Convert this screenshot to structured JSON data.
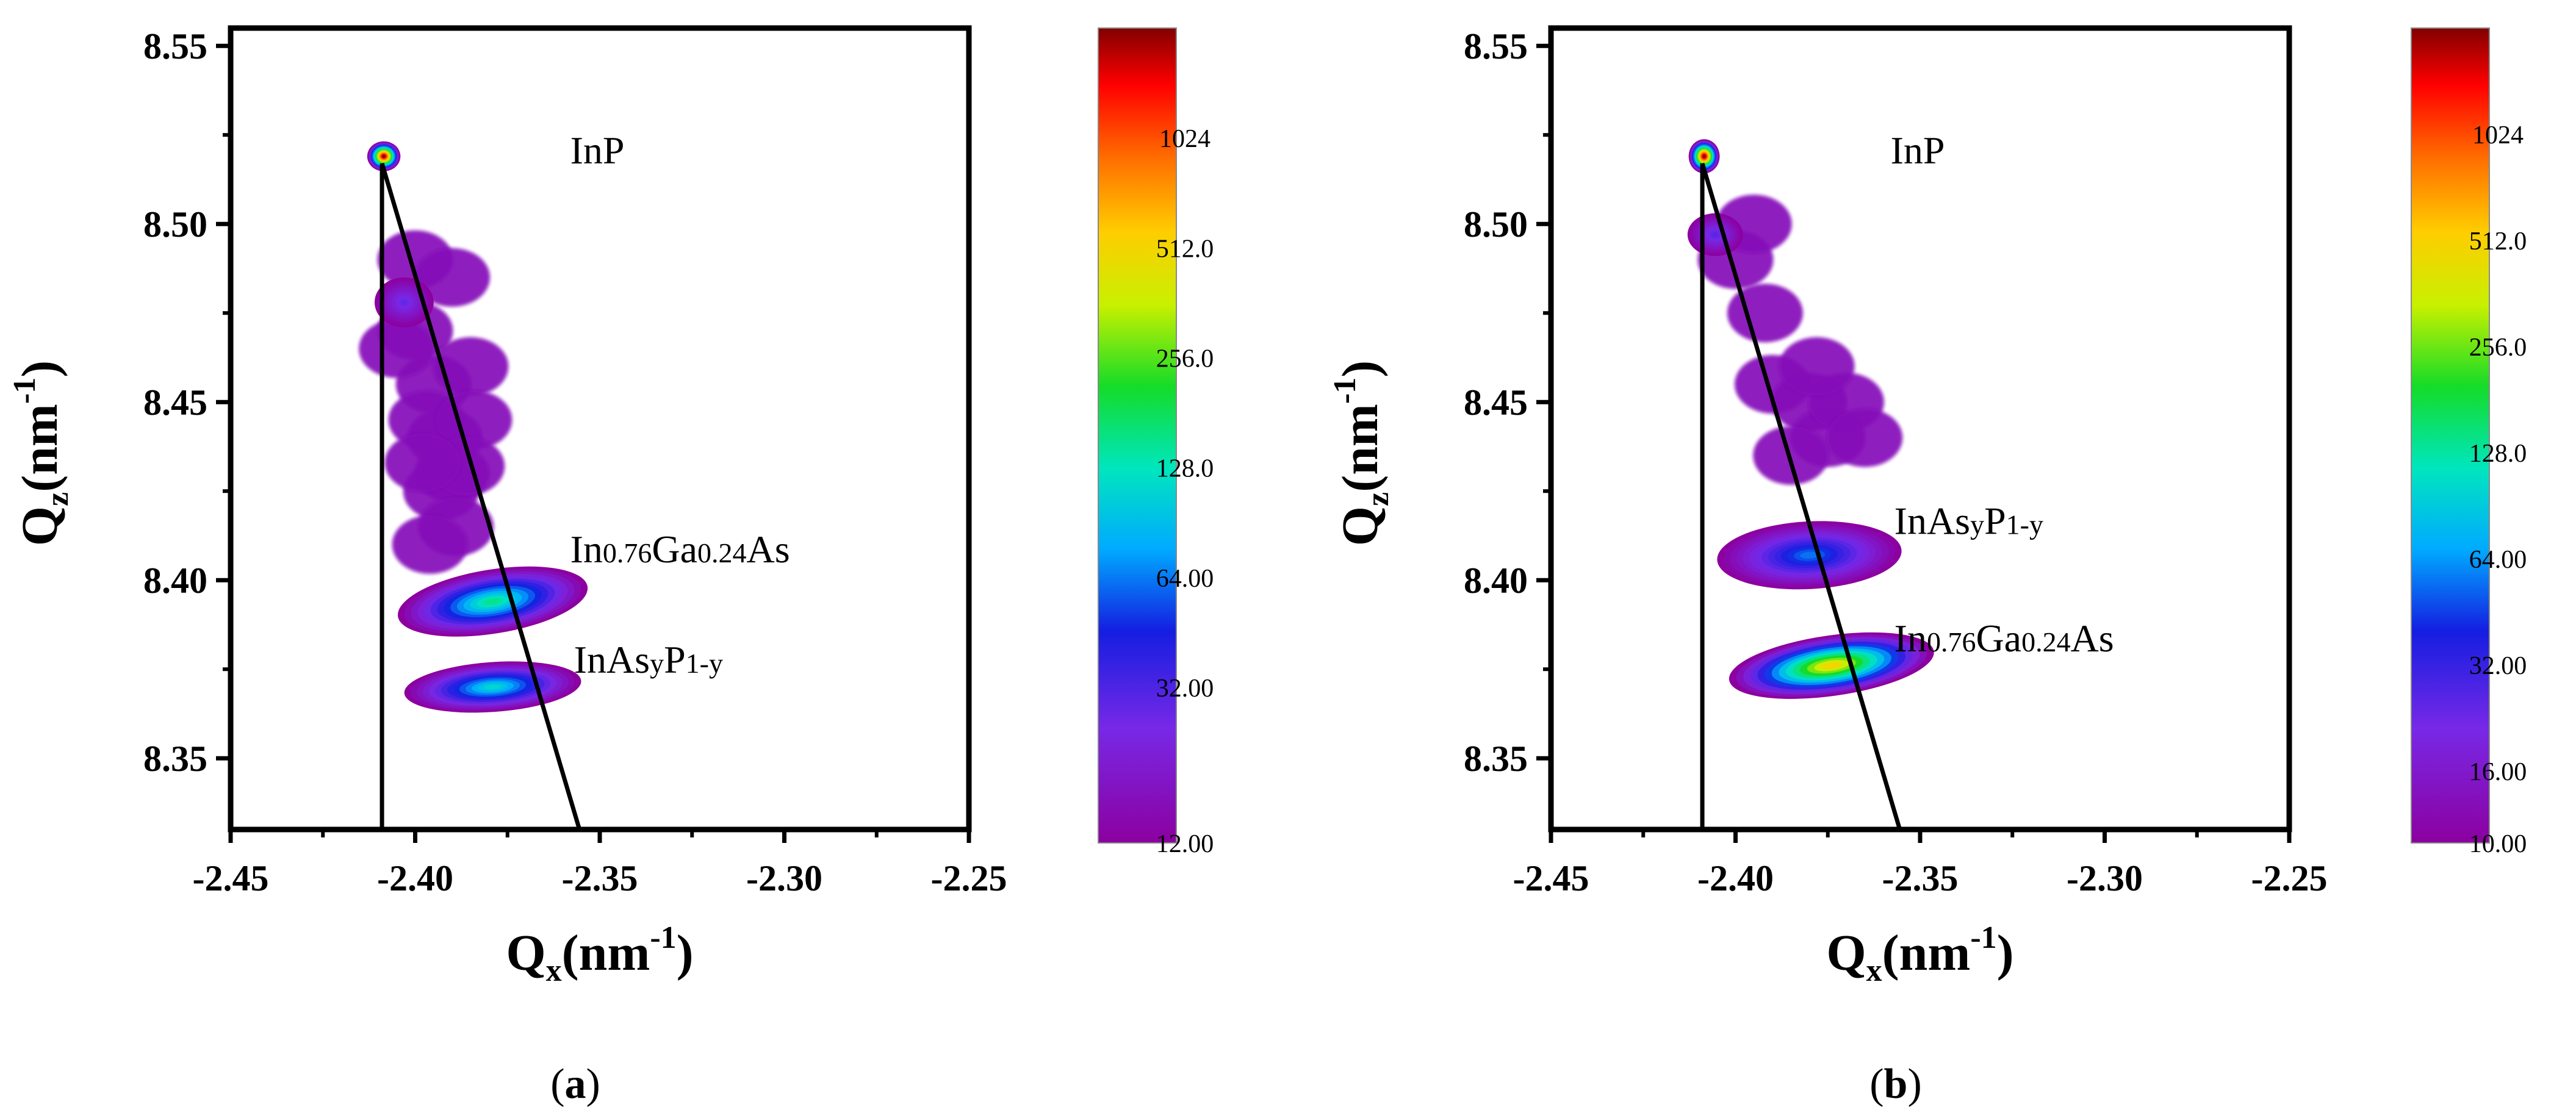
{
  "chart_data": [
    {
      "type": "heatmap",
      "panel_label": "(a)",
      "panel_letter": "a",
      "xlabel": {
        "main": "Q",
        "sub": "x",
        "rest": "(nm",
        "sup": "-1",
        "close": ")"
      },
      "ylabel": {
        "main": "Q",
        "sub": "z",
        "rest": "(nm",
        "sup": "-1",
        "close": ")"
      },
      "xlim": [
        -2.45,
        -2.25
      ],
      "ylim": [
        8.33,
        8.555
      ],
      "x_ticks": [
        "-2.45",
        "-2.40",
        "-2.35",
        "-2.30",
        "-2.25"
      ],
      "y_ticks": [
        "8.35",
        "8.40",
        "8.45",
        "8.50",
        "8.55"
      ],
      "colorbar": {
        "scale": "log",
        "min": 12.0,
        "max": 2048.0,
        "labels": [
          "12.00",
          "32.00",
          "64.00",
          "128.0",
          "256.0",
          "512.0",
          "1024"
        ]
      },
      "annotations": [
        {
          "id": "inp",
          "parts": [
            [
              "InP",
              false
            ]
          ],
          "x": -2.358,
          "y": 8.517
        },
        {
          "id": "ingaas",
          "parts": [
            [
              "In",
              false
            ],
            [
              "0.76",
              true
            ],
            [
              "Ga",
              false
            ],
            [
              "0.24",
              true
            ],
            [
              "As",
              false
            ]
          ],
          "x": -2.358,
          "y": 8.405
        },
        {
          "id": "inasp",
          "parts": [
            [
              "InAs",
              false
            ],
            [
              "y",
              true
            ],
            [
              "P",
              false
            ],
            [
              "1-y",
              true
            ]
          ],
          "x": -2.357,
          "y": 8.374
        }
      ],
      "lines": [
        {
          "name": "relaxation-line",
          "from": [
            -2.409,
            8.517
          ],
          "to": [
            -2.3555,
            8.33
          ]
        },
        {
          "name": "vertical-line",
          "from": [
            -2.409,
            8.517
          ],
          "to": [
            -2.409,
            8.33
          ]
        }
      ],
      "peaks": [
        {
          "name": "inp-peak",
          "qx": -2.4085,
          "qz": 8.519,
          "wx": 0.0045,
          "wz": 0.0042,
          "intensity": 2048,
          "rot": 0
        },
        {
          "name": "diffuse-peak",
          "qx": -2.403,
          "qz": 8.478,
          "wx": 0.008,
          "wz": 0.007,
          "intensity": 28,
          "rot": 0
        },
        {
          "name": "layer-peak-upper",
          "qx": -2.379,
          "qz": 8.394,
          "wx": 0.026,
          "wz": 0.009,
          "intensity": 150,
          "rot": 9
        },
        {
          "name": "layer-peak-lower",
          "qx": -2.379,
          "qz": 8.37,
          "wx": 0.024,
          "wz": 0.007,
          "intensity": 110,
          "rot": 4
        }
      ],
      "diffuse": [
        [
          -2.4,
          8.47
        ],
        [
          -2.395,
          8.455
        ],
        [
          -2.392,
          8.44
        ],
        [
          -2.39,
          8.43
        ],
        [
          -2.397,
          8.445
        ],
        [
          -2.385,
          8.46
        ],
        [
          -2.393,
          8.425
        ],
        [
          -2.4,
          8.49
        ],
        [
          -2.39,
          8.485
        ],
        [
          -2.384,
          8.445
        ],
        [
          -2.389,
          8.415
        ],
        [
          -2.396,
          8.41
        ],
        [
          -2.405,
          8.465
        ],
        [
          -2.386,
          8.432
        ],
        [
          -2.398,
          8.433
        ]
      ]
    },
    {
      "type": "heatmap",
      "panel_label": "(b)",
      "panel_letter": "b",
      "xlabel": {
        "main": "Q",
        "sub": "x",
        "rest": "(nm",
        "sup": "-1",
        "close": ")"
      },
      "ylabel": {
        "main": "Q",
        "sub": "z",
        "rest": "(nm",
        "sup": "-1",
        "close": ")"
      },
      "xlim": [
        -2.45,
        -2.25
      ],
      "ylim": [
        8.33,
        8.555
      ],
      "x_ticks": [
        "-2.45",
        "-2.40",
        "-2.35",
        "-2.30",
        "-2.25"
      ],
      "y_ticks": [
        "8.35",
        "8.40",
        "8.45",
        "8.50",
        "8.55"
      ],
      "colorbar": {
        "scale": "log",
        "min": 10.0,
        "max": 2048.0,
        "labels": [
          "10.00",
          "16.00",
          "32.00",
          "64.00",
          "128.0",
          "256.0",
          "512.0",
          "1024"
        ]
      },
      "annotations": [
        {
          "id": "inp",
          "parts": [
            [
              "InP",
              false
            ]
          ],
          "x": -2.358,
          "y": 8.517
        },
        {
          "id": "inasp",
          "parts": [
            [
              "InAs",
              false
            ],
            [
              "y",
              true
            ],
            [
              "P",
              false
            ],
            [
              "1-y",
              true
            ]
          ],
          "x": -2.357,
          "y": 8.413
        },
        {
          "id": "ingaas",
          "parts": [
            [
              "In",
              false
            ],
            [
              "0.76",
              true
            ],
            [
              "Ga",
              false
            ],
            [
              "0.24",
              true
            ],
            [
              "As",
              false
            ]
          ],
          "x": -2.357,
          "y": 8.38
        }
      ],
      "lines": [
        {
          "name": "relaxation-line",
          "from": [
            -2.409,
            8.517
          ],
          "to": [
            -2.3555,
            8.33
          ]
        },
        {
          "name": "vertical-line",
          "from": [
            -2.409,
            8.517
          ],
          "to": [
            -2.409,
            8.33
          ]
        }
      ],
      "peaks": [
        {
          "name": "inp-peak",
          "qx": -2.4085,
          "qz": 8.519,
          "wx": 0.0042,
          "wz": 0.0048,
          "intensity": 2048,
          "rot": 0
        },
        {
          "name": "diffuse-peak",
          "qx": -2.4055,
          "qz": 8.497,
          "wx": 0.0075,
          "wz": 0.006,
          "intensity": 26,
          "rot": 0
        },
        {
          "name": "layer-peak-upper",
          "qx": -2.38,
          "qz": 8.407,
          "wx": 0.025,
          "wz": 0.0095,
          "intensity": 55,
          "rot": 3
        },
        {
          "name": "layer-peak-lower",
          "qx": -2.374,
          "qz": 8.376,
          "wx": 0.028,
          "wz": 0.0085,
          "intensity": 480,
          "rot": 8
        }
      ],
      "diffuse": [
        [
          -2.39,
          8.455
        ],
        [
          -2.38,
          8.45
        ],
        [
          -2.375,
          8.44
        ],
        [
          -2.385,
          8.435
        ],
        [
          -2.37,
          8.45
        ],
        [
          -2.4,
          8.49
        ],
        [
          -2.395,
          8.5
        ],
        [
          -2.392,
          8.475
        ],
        [
          -2.378,
          8.46
        ],
        [
          -2.365,
          8.44
        ]
      ]
    }
  ]
}
